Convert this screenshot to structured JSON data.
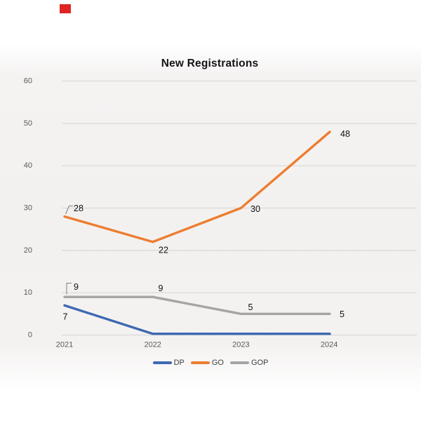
{
  "marker": {
    "color": "#e02424"
  },
  "chart_data": {
    "type": "line",
    "title": "New Registrations",
    "categories": [
      "2021",
      "2022",
      "2023",
      "2024"
    ],
    "series": [
      {
        "name": "DP",
        "color": "#3E68B2",
        "values": [
          7,
          0,
          0,
          0
        ],
        "labels": [
          "7",
          "",
          "",
          ""
        ]
      },
      {
        "name": "GO",
        "color": "#ED7D31",
        "values": [
          28,
          22,
          30,
          48
        ],
        "labels": [
          "28",
          "22",
          "30",
          "48"
        ]
      },
      {
        "name": "GOP",
        "color": "#A5A5A5",
        "values": [
          9,
          9,
          5,
          5
        ],
        "labels": [
          "9",
          "9",
          "5",
          "5"
        ]
      }
    ],
    "ylim": [
      0,
      60
    ],
    "yticks": [
      0,
      10,
      20,
      30,
      40,
      50,
      60
    ],
    "grid": true,
    "legend_position": "bottom",
    "legend_entries": [
      "DP",
      "GO",
      "GOP"
    ]
  },
  "colors": {
    "gridline": "#d9d9d9",
    "tick_label": "#595959",
    "data_label": "#111111",
    "leader_line": "#808080"
  }
}
